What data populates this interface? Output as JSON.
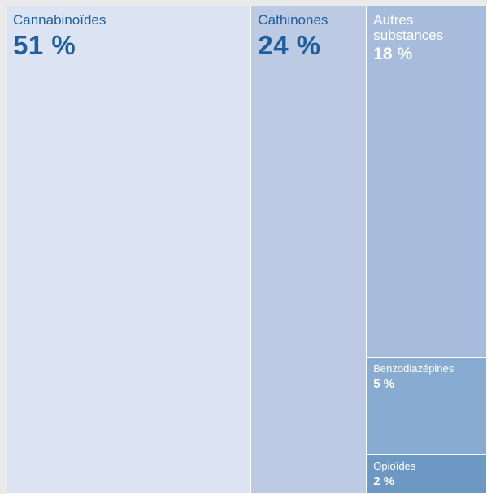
{
  "chart_data": {
    "type": "treemap",
    "items": [
      {
        "name": "Cannabinoïdes",
        "value_label": "51 %",
        "value": 51,
        "color": "#dce4f3",
        "text_color": "#1f5f9e",
        "size": "big"
      },
      {
        "name": "Cathinones",
        "value_label": "24 %",
        "value": 24,
        "color": "#bccbe3",
        "text_color": "#1f5f9e",
        "size": "big"
      },
      {
        "name": "Autres substances",
        "value_label": "18 %",
        "value": 18,
        "color": "#a7bbdc",
        "text_color": "#ffffff",
        "size": "mid"
      },
      {
        "name": "Benzodiazépines",
        "value_label": "5 %",
        "value": 5,
        "color": "#87abd1",
        "text_color": "#ffffff",
        "size": "small"
      },
      {
        "name": "Opioïdes",
        "value_label": "2 %",
        "value": 2,
        "color": "#6c98c3",
        "text_color": "#ffffff",
        "size": "small"
      }
    ]
  }
}
